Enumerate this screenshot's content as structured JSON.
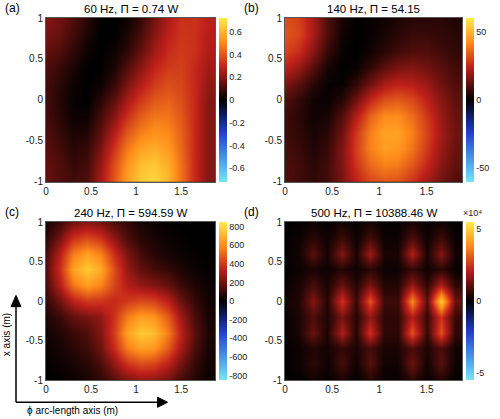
{
  "axis_labels": {
    "x": "ϕ arc-length axis (m)",
    "y": "x axis (m)"
  },
  "chart_data": [
    {
      "type": "heatmap",
      "label": "(a)",
      "title": "60 Hz, Π = 0.74 W",
      "x": [
        0,
        0.15,
        0.3,
        0.45,
        0.6,
        0.75,
        0.9,
        1.05,
        1.2,
        1.35,
        1.5,
        1.65,
        1.8
      ],
      "y": [
        -1,
        -0.8,
        -0.6,
        -0.4,
        -0.2,
        0,
        0.2,
        0.4,
        0.6,
        0.8,
        1
      ],
      "z": [
        [
          0.15,
          0.12,
          0.1,
          0.12,
          0.25,
          0.4,
          0.55,
          0.65,
          0.68,
          0.6,
          0.45,
          0.3,
          0.2
        ],
        [
          0.15,
          0.12,
          0.08,
          0.1,
          0.22,
          0.38,
          0.52,
          0.62,
          0.64,
          0.58,
          0.45,
          0.3,
          0.2
        ],
        [
          0.14,
          0.1,
          0.06,
          0.08,
          0.18,
          0.33,
          0.47,
          0.56,
          0.58,
          0.54,
          0.43,
          0.3,
          0.2
        ],
        [
          0.12,
          0.08,
          0.04,
          0.05,
          0.14,
          0.27,
          0.4,
          0.48,
          0.52,
          0.5,
          0.42,
          0.3,
          0.2
        ],
        [
          0.1,
          0.06,
          0.02,
          0.02,
          0.1,
          0.2,
          0.32,
          0.41,
          0.46,
          0.46,
          0.4,
          0.3,
          0.2
        ],
        [
          0.1,
          0.05,
          0.01,
          0,
          0.06,
          0.14,
          0.25,
          0.34,
          0.4,
          0.42,
          0.38,
          0.3,
          0.2
        ],
        [
          0.1,
          0.06,
          0.02,
          0,
          0.02,
          0.08,
          0.18,
          0.27,
          0.34,
          0.38,
          0.36,
          0.3,
          0.22
        ],
        [
          0.12,
          0.08,
          0.04,
          0,
          0,
          0.04,
          0.12,
          0.21,
          0.29,
          0.34,
          0.35,
          0.3,
          0.24
        ],
        [
          0.15,
          0.12,
          0.07,
          0.02,
          0,
          0.02,
          0.07,
          0.15,
          0.24,
          0.31,
          0.34,
          0.32,
          0.26
        ],
        [
          0.18,
          0.15,
          0.1,
          0.04,
          0,
          0,
          0.04,
          0.11,
          0.2,
          0.28,
          0.33,
          0.32,
          0.27
        ],
        [
          0.2,
          0.17,
          0.12,
          0.06,
          0.01,
          0,
          0.02,
          0.08,
          0.17,
          0.26,
          0.32,
          0.32,
          0.28
        ]
      ],
      "xlim": [
        0,
        1.875
      ],
      "ylim": [
        -1,
        1
      ],
      "xticks": [
        0,
        0.5,
        1,
        1.5
      ],
      "yticks": [
        -1,
        -0.5,
        0,
        0.5,
        1
      ],
      "colorbar": {
        "range": [
          -0.72,
          0.72
        ],
        "ticks": [
          -0.6,
          -0.4,
          -0.2,
          0,
          0.2,
          0.4,
          0.6
        ]
      }
    },
    {
      "type": "heatmap",
      "label": "(b)",
      "title": "140 Hz, Π = 54.15",
      "x": [
        0,
        0.15,
        0.3,
        0.45,
        0.6,
        0.75,
        0.9,
        1.05,
        1.2,
        1.35,
        1.5,
        1.65,
        1.8
      ],
      "y": [
        -1,
        -0.8,
        -0.6,
        -0.4,
        -0.2,
        0,
        0.2,
        0.4,
        0.6,
        0.8,
        1
      ],
      "z": [
        [
          10,
          8,
          6,
          8,
          15,
          24,
          30,
          33,
          32,
          27,
          20,
          14,
          10
        ],
        [
          10,
          8,
          5,
          8,
          16,
          27,
          36,
          40,
          39,
          33,
          25,
          17,
          12
        ],
        [
          9,
          7,
          4,
          7,
          16,
          29,
          40,
          45,
          44,
          38,
          28,
          19,
          13
        ],
        [
          8,
          6,
          3,
          5,
          14,
          28,
          40,
          46,
          46,
          40,
          30,
          20,
          14
        ],
        [
          8,
          5,
          2,
          3,
          10,
          22,
          35,
          42,
          42,
          37,
          28,
          19,
          13
        ],
        [
          10,
          6,
          2,
          1,
          5,
          14,
          25,
          32,
          34,
          31,
          24,
          17,
          12
        ],
        [
          16,
          11,
          5,
          1,
          1,
          6,
          14,
          21,
          24,
          23,
          19,
          14,
          10
        ],
        [
          24,
          19,
          11,
          3,
          0,
          1,
          6,
          11,
          15,
          16,
          14,
          11,
          8
        ],
        [
          30,
          26,
          17,
          7,
          1,
          0,
          2,
          5,
          8,
          10,
          10,
          8,
          6
        ],
        [
          33,
          30,
          21,
          10,
          2,
          0,
          1,
          3,
          5,
          7,
          7,
          6,
          5
        ],
        [
          32,
          29,
          21,
          10,
          3,
          0,
          1,
          2,
          4,
          5,
          5,
          5,
          4
        ]
      ],
      "xlim": [
        0,
        1.875
      ],
      "ylim": [
        -1,
        1
      ],
      "xticks": [
        0,
        0.5,
        1,
        1.5
      ],
      "yticks": [
        -1,
        -0.5,
        0,
        0.5,
        1
      ],
      "colorbar": {
        "range": [
          -60,
          60
        ],
        "ticks": [
          -50,
          0,
          50
        ]
      }
    },
    {
      "type": "heatmap",
      "label": "(c)",
      "title": "240 Hz, Π = 594.59 W",
      "x": [
        0,
        0.15,
        0.3,
        0.45,
        0.6,
        0.75,
        0.9,
        1.05,
        1.2,
        1.35,
        1.5,
        1.65,
        1.8
      ],
      "y": [
        -1,
        -0.8,
        -0.6,
        -0.4,
        -0.2,
        0,
        0.2,
        0.4,
        0.6,
        0.8,
        1
      ],
      "z": [
        [
          0,
          10,
          20,
          40,
          80,
          150,
          220,
          260,
          250,
          200,
          120,
          60,
          20
        ],
        [
          10,
          20,
          40,
          70,
          130,
          250,
          380,
          440,
          420,
          330,
          200,
          90,
          30
        ],
        [
          20,
          40,
          70,
          110,
          190,
          360,
          560,
          650,
          620,
          480,
          290,
          130,
          40
        ],
        [
          30,
          60,
          100,
          140,
          220,
          410,
          650,
          760,
          720,
          560,
          330,
          150,
          50
        ],
        [
          50,
          100,
          170,
          210,
          250,
          380,
          560,
          650,
          620,
          480,
          280,
          130,
          40
        ],
        [
          90,
          200,
          330,
          400,
          390,
          360,
          400,
          440,
          420,
          330,
          190,
          90,
          30
        ],
        [
          130,
          320,
          540,
          640,
          580,
          430,
          320,
          260,
          230,
          180,
          100,
          50,
          20
        ],
        [
          150,
          380,
          650,
          760,
          680,
          450,
          270,
          170,
          120,
          90,
          50,
          20,
          10
        ],
        [
          130,
          330,
          560,
          650,
          580,
          380,
          220,
          120,
          70,
          40,
          20,
          10,
          0
        ],
        [
          80,
          210,
          380,
          440,
          390,
          250,
          140,
          70,
          40,
          20,
          10,
          0,
          0
        ],
        [
          40,
          110,
          200,
          240,
          210,
          140,
          80,
          40,
          20,
          10,
          0,
          0,
          0
        ]
      ],
      "xlim": [
        0,
        1.875
      ],
      "ylim": [
        -1,
        1
      ],
      "xticks": [
        0,
        0.5,
        1,
        1.5
      ],
      "yticks": [
        -1,
        -0.5,
        0,
        0.5,
        1
      ],
      "colorbar": {
        "range": [
          -850,
          850
        ],
        "ticks": [
          -800,
          -600,
          -400,
          -200,
          0,
          200,
          400,
          600,
          800
        ]
      }
    },
    {
      "type": "heatmap",
      "label": "(d)",
      "title": "500 Hz, Π = 10388.46 W",
      "x": [
        0,
        0.15,
        0.3,
        0.45,
        0.6,
        0.75,
        0.9,
        1.05,
        1.2,
        1.35,
        1.5,
        1.65,
        1.8
      ],
      "y": [
        -1,
        -0.8,
        -0.6,
        -0.4,
        -0.2,
        0,
        0.2,
        0.4,
        0.6,
        0.8,
        1
      ],
      "z": [
        [
          0,
          500,
          2000,
          500,
          3000,
          500,
          4000,
          1000,
          1000,
          5000,
          1000,
          4000,
          500
        ],
        [
          500,
          1500,
          5000,
          1500,
          8000,
          1500,
          10000,
          2000,
          2000,
          12000,
          2000,
          10000,
          1500
        ],
        [
          500,
          1500,
          4000,
          2000,
          6000,
          3000,
          8000,
          3000,
          3000,
          9000,
          3000,
          9000,
          2000
        ],
        [
          1000,
          3000,
          12000,
          3000,
          20000,
          4000,
          25000,
          5000,
          5000,
          30000,
          6000,
          30000,
          5000
        ],
        [
          1000,
          3000,
          9000,
          3000,
          14000,
          4000,
          17000,
          5000,
          5000,
          21000,
          6000,
          25000,
          6000
        ],
        [
          1500,
          4000,
          15000,
          4000,
          25000,
          6000,
          30000,
          7000,
          7000,
          38000,
          10000,
          50000,
          12000
        ],
        [
          1000,
          3000,
          8000,
          3000,
          12000,
          4000,
          14000,
          4000,
          4000,
          17000,
          5000,
          20000,
          5000
        ],
        [
          500,
          1500,
          3000,
          1500,
          4000,
          1500,
          5000,
          1500,
          1500,
          6000,
          1500,
          5000,
          1000
        ],
        [
          500,
          2000,
          10000,
          2500,
          15000,
          3000,
          18000,
          3000,
          3000,
          20000,
          3000,
          15000,
          2000
        ],
        [
          500,
          1500,
          5000,
          1500,
          7000,
          1500,
          8000,
          1500,
          1500,
          9000,
          1500,
          7000,
          1000
        ],
        [
          0,
          500,
          1500,
          500,
          2000,
          500,
          2500,
          500,
          500,
          3000,
          500,
          2000,
          500
        ]
      ],
      "xlim": [
        0,
        1.875
      ],
      "ylim": [
        -1,
        1
      ],
      "xticks": [
        0,
        0.5,
        1,
        1.5
      ],
      "yticks": [
        -1,
        -0.5,
        0,
        0.5,
        1
      ],
      "colorbar": {
        "range": [
          -55000,
          55000
        ],
        "ticks": [
          {
            "value": -50000,
            "label": "-5"
          },
          0,
          {
            "value": 50000,
            "label": "5"
          }
        ],
        "multiplier": "×10⁴"
      }
    }
  ]
}
